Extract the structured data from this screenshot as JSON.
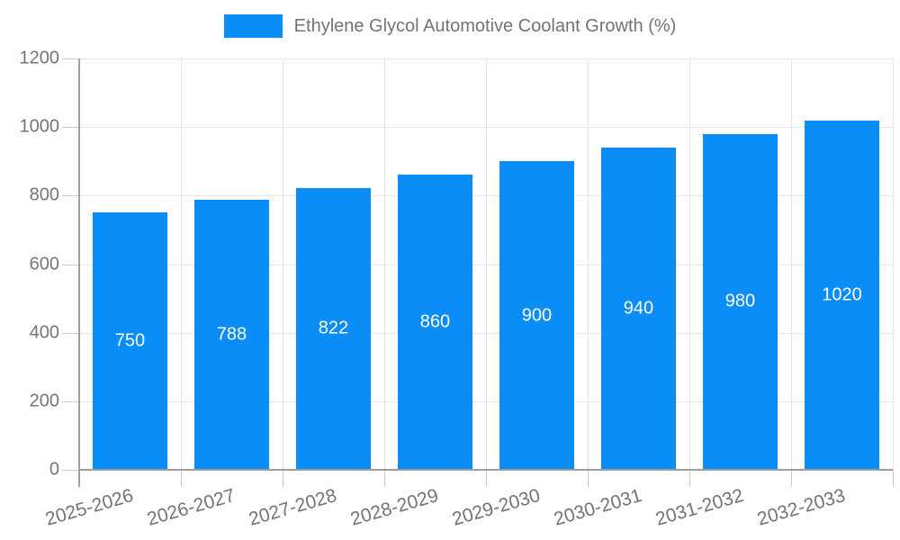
{
  "legend": {
    "label": "Ethylene Glycol Automotive Coolant Growth (%)"
  },
  "chart_data": {
    "type": "bar",
    "title": "Ethylene Glycol Automotive Coolant Growth (%)",
    "series_name": "Ethylene Glycol Automotive Coolant Growth (%)",
    "categories": [
      "2025-2026",
      "2026-2027",
      "2027-2028",
      "2028-2029",
      "2029-2030",
      "2030-2031",
      "2031-2032",
      "2032-2033"
    ],
    "values": [
      750,
      788,
      822,
      860,
      900,
      940,
      980,
      1020
    ],
    "xlabel": "",
    "ylabel": "",
    "ylim": [
      0,
      1200
    ],
    "ytick_step": 200,
    "yticks": [
      0,
      200,
      400,
      600,
      800,
      1000,
      1200
    ],
    "grid": true,
    "legend_position": "top-center",
    "value_labels_position": "inside-middle",
    "x_label_rotation_deg": -16,
    "bar_color": "#0a8df6",
    "value_label_color": "#ffffff",
    "axis_text_color": "#757575",
    "legend_text_color": "#737373",
    "grid_color": "#e6e6e6",
    "axis_line_color": "#9e9e9e",
    "tick_color": "#c9c9c9",
    "background_color": "#ffffff"
  }
}
